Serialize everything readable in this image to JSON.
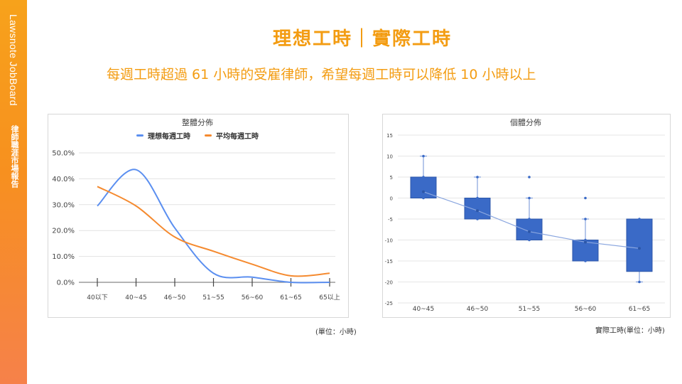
{
  "brand": {
    "name": "Lawsnote JobBoard",
    "subtitle": "律師職涯市場報告"
  },
  "slide": {
    "title": "理想工時｜實際工時",
    "subtitle": "每週工時超過 61 小時的受雇律師，希望每週工時可以降低 10 小時以上"
  },
  "colors": {
    "accent": "#f39c12",
    "ideal": "#5b8ff0",
    "average": "#f58a2f",
    "box": "#3a6ac7"
  },
  "chart_data": [
    {
      "type": "line",
      "title": "整體分佈",
      "categories": [
        "40以下",
        "40~45",
        "46~50",
        "51~55",
        "56~60",
        "61~65",
        "65以上"
      ],
      "series": [
        {
          "name": "理想每週工時",
          "values": [
            29.5,
            43.5,
            21.0,
            3.5,
            2.0,
            0.0,
            0.0
          ]
        },
        {
          "name": "平均每週工時",
          "values": [
            37.0,
            29.5,
            17.5,
            12.0,
            7.0,
            2.5,
            3.5
          ]
        }
      ],
      "yticks": [
        "0.0%",
        "10.0%",
        "20.0%",
        "30.0%",
        "40.0%",
        "50.0%"
      ],
      "ylim": [
        0,
        50
      ],
      "unit_note": "(單位：小時)"
    },
    {
      "type": "box",
      "title": "個體分佈",
      "categories": [
        "40~45",
        "46~50",
        "51~55",
        "56~60",
        "61~65"
      ],
      "boxes": [
        {
          "q1": 0,
          "q3": 5,
          "mean": 1.5,
          "whisker_low": 0,
          "whisker_high": 10,
          "points": [
            10,
            5,
            0
          ]
        },
        {
          "q1": -5,
          "q3": 0,
          "mean": -3,
          "whisker_low": -5,
          "whisker_high": 5,
          "points": [
            5,
            0,
            -5
          ]
        },
        {
          "q1": -10,
          "q3": -5,
          "mean": -8,
          "whisker_low": -10,
          "whisker_high": 0,
          "points": [
            5,
            0,
            -5,
            -10
          ]
        },
        {
          "q1": -15,
          "q3": -10,
          "mean": -10.5,
          "whisker_low": -15,
          "whisker_high": -5,
          "points": [
            0,
            -5,
            -10,
            -15
          ]
        },
        {
          "q1": -17.5,
          "q3": -5,
          "mean": -12,
          "whisker_low": -20,
          "whisker_high": -5,
          "points": [
            -5,
            -10,
            -20
          ]
        }
      ],
      "yticks": [
        "15",
        "10",
        "5",
        "0",
        "-5",
        "-10",
        "-15",
        "-20",
        "-25"
      ],
      "ylim": [
        -25,
        15
      ],
      "xlabel": "實際工時(單位：小時)"
    }
  ]
}
